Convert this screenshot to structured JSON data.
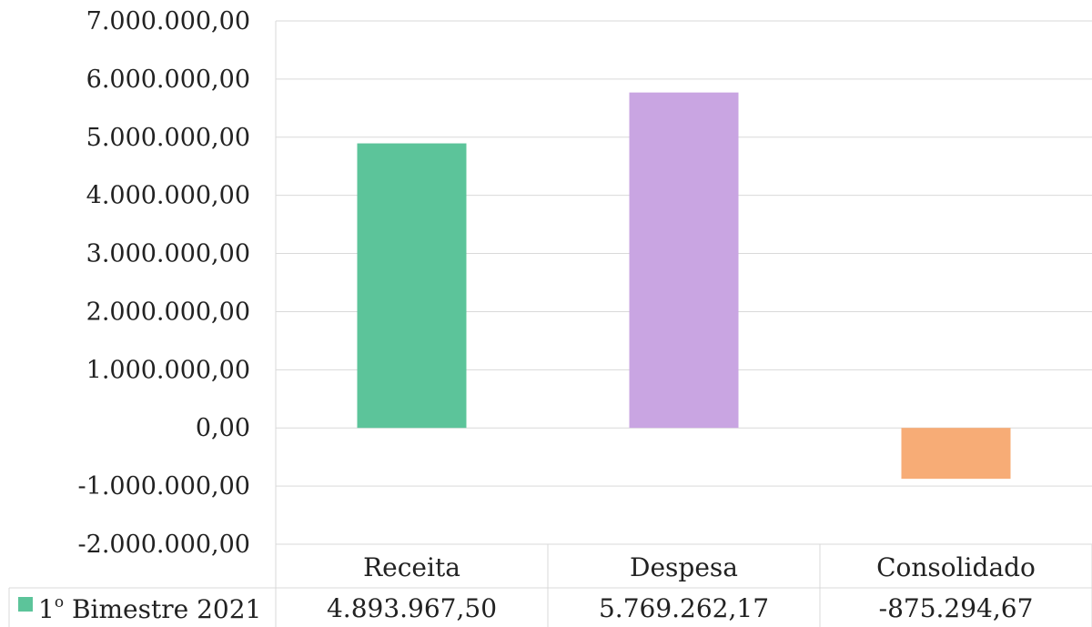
{
  "chart_data": {
    "type": "bar",
    "categories": [
      "Receita",
      "Despesa",
      "Consolidado"
    ],
    "series": [
      {
        "name": "1º Bimestre 2021",
        "values": [
          4893967.5,
          5769262.17,
          -875294.67
        ],
        "value_labels": [
          "4.893.967,50",
          "5.769.262,17",
          "-875.294,67"
        ]
      }
    ],
    "bar_colors": [
      "#5cc49a",
      "#c9a5e2",
      "#f7ac76"
    ],
    "ylim": [
      -2000000,
      7000000
    ],
    "ticks": [
      7000000,
      6000000,
      5000000,
      4000000,
      3000000,
      2000000,
      1000000,
      0,
      -1000000,
      -2000000
    ],
    "tick_labels": [
      "7.000.000,00",
      "6.000.000,00",
      "5.000.000,00",
      "4.000.000,00",
      "3.000.000,00",
      "2.000.000,00",
      "1.000.000,00",
      "0,00",
      "-1.000.000,00",
      "-2.000.000,00"
    ],
    "grid": true,
    "legend": {
      "label_main": "1",
      "label_sup": "o",
      "label_rest": " Bimestre 2021",
      "placement": "data-table-left"
    },
    "title": "",
    "xlabel": "",
    "ylabel": ""
  }
}
